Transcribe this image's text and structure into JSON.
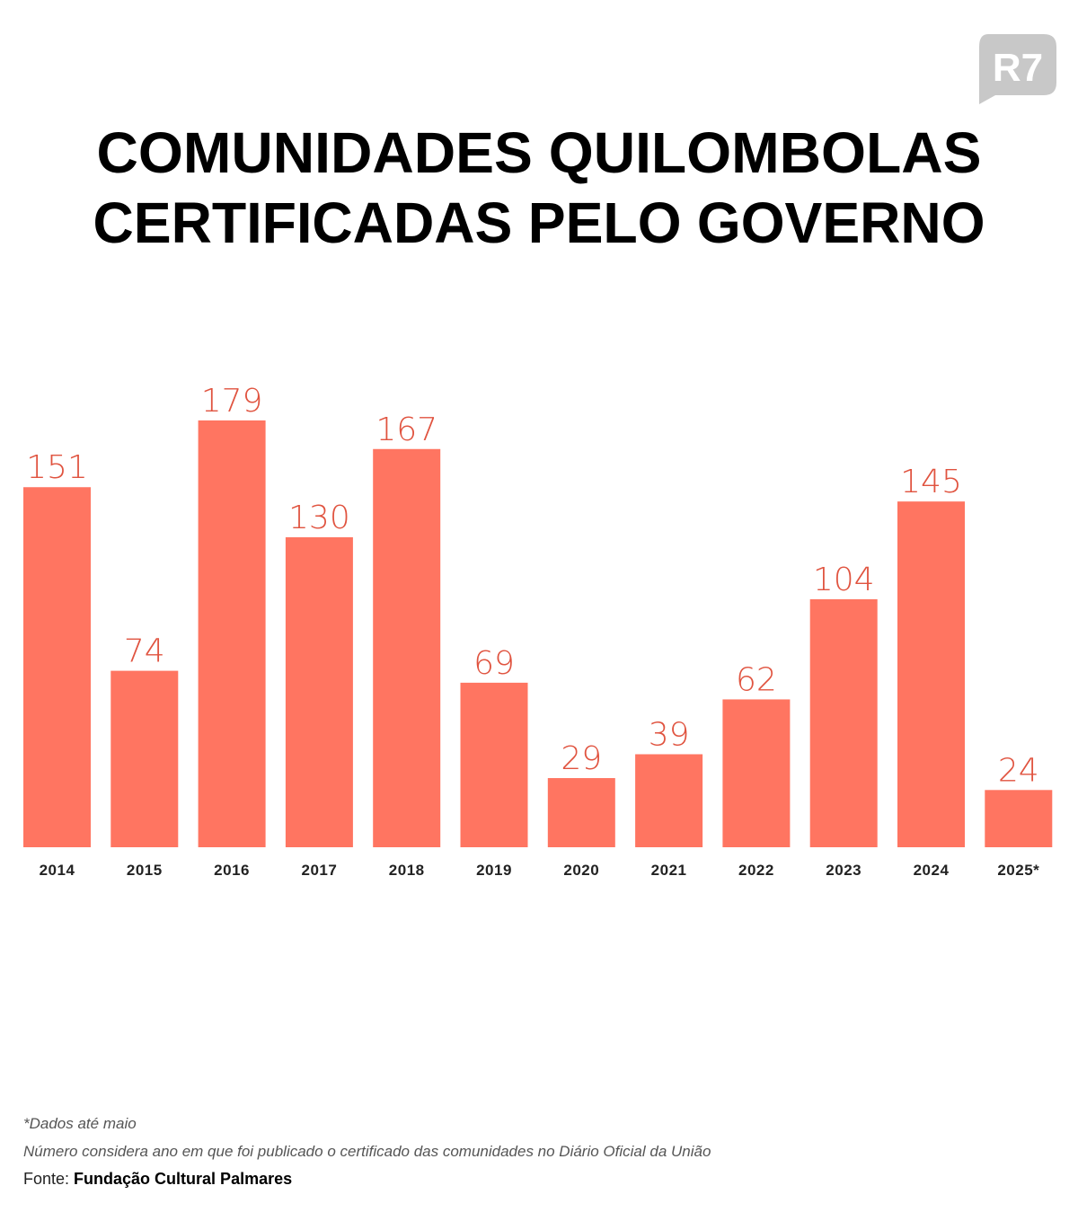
{
  "logo": "R7",
  "chart_data": {
    "type": "bar",
    "title": [
      "COMUNIDADES QUILOMBOLAS",
      "CERTIFICADAS PELO GOVERNO"
    ],
    "categories": [
      "2014",
      "2015",
      "2016",
      "2017",
      "2018",
      "2019",
      "2020",
      "2021",
      "2022",
      "2023",
      "2024",
      "2025*"
    ],
    "values": [
      151,
      74,
      179,
      130,
      167,
      69,
      29,
      39,
      62,
      104,
      145,
      24
    ],
    "color": "#ff7561",
    "label_color": "#e0533f"
  },
  "notes": [
    "*Dados até maio",
    "Número considera ano em que foi publicado o certificado das comunidades no Diário Oficial da União"
  ],
  "source": {
    "label": "Fonte:",
    "name": "Fundação Cultural Palmares"
  }
}
